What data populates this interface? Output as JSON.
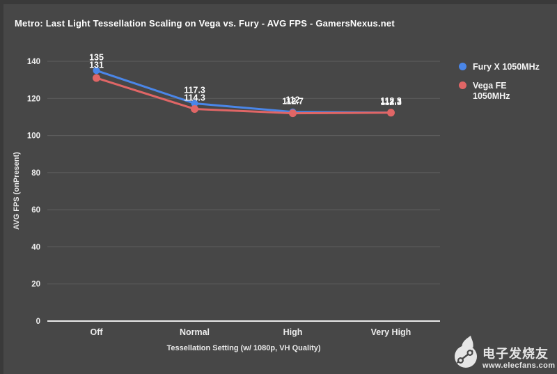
{
  "header": {
    "title": "Metro: Last Light Tessellation Scaling on Vega vs. Fury - AVG FPS - GamersNexus.net"
  },
  "colors": {
    "background": "#474747",
    "edge": "#3a3a3a",
    "gridline": "#5f5f5f",
    "baseline": "#eaeaea",
    "tick_text": "#ededed",
    "label_text": "#ffffff",
    "fury_blue": "#4a86e8",
    "vega_red": "#e06666"
  },
  "legend": {
    "items": [
      {
        "label": "Fury X 1050MHz",
        "color": "#4a86e8"
      },
      {
        "label": "Vega FE 1050MHz",
        "color": "#e06666"
      }
    ]
  },
  "chart_data": {
    "type": "line",
    "title": "Metro: Last Light Tessellation Scaling on Vega vs. Fury - AVG FPS - GamersNexus.net",
    "categories": [
      "Off",
      "Normal",
      "High",
      "Very High"
    ],
    "series": [
      {
        "name": "Fury X 1050MHz",
        "color": "#4a86e8",
        "values": [
          135,
          117.3,
          112.7,
          112.3
        ]
      },
      {
        "name": "Vega FE 1050MHz",
        "color": "#e06666",
        "values": [
          131,
          114.3,
          112,
          112.3
        ]
      }
    ],
    "xlabel": "Tessellation Setting (w/ 1080p, VH Quality)",
    "ylabel": "AVG FPS (onPresent)",
    "ylim": [
      0,
      140
    ],
    "ytick_step": 20,
    "grid": true,
    "legend_position": "right",
    "data_labels": true
  },
  "watermark": {
    "name": "电子发烧友",
    "url": "www.elecfans.com"
  }
}
